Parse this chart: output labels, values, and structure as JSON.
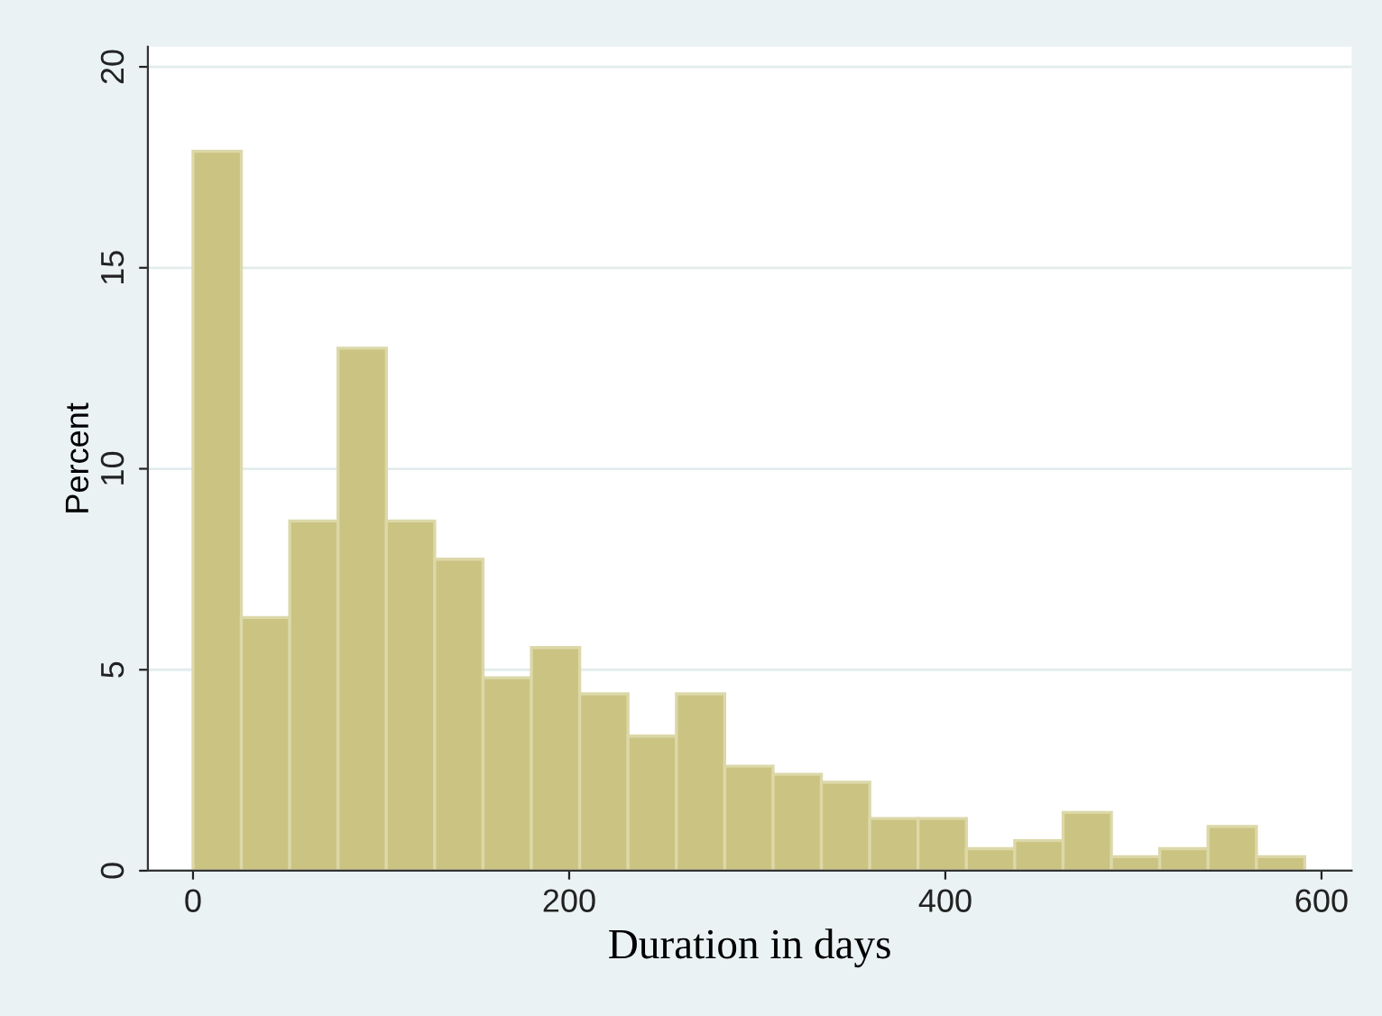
{
  "chart_data": {
    "type": "histogram",
    "xlabel": "Duration in days",
    "ylabel": "Percent",
    "bins": [
      0,
      25.7,
      51.4,
      77.1,
      102.8,
      128.5,
      154.2,
      179.9,
      205.6,
      231.3,
      257,
      282.7,
      308.4,
      334.1,
      359.8,
      385.5,
      411.2,
      436.9,
      462.6,
      488.3,
      514,
      539.7,
      565.4,
      591.1
    ],
    "values": [
      17.9,
      6.3,
      8.7,
      13.0,
      8.7,
      7.75,
      4.8,
      5.55,
      4.4,
      3.35,
      4.4,
      2.6,
      2.4,
      2.2,
      1.3,
      1.3,
      0.55,
      0.75,
      1.45,
      0.35,
      0.55,
      1.1,
      0.35
    ],
    "color": "#cbc382",
    "xlim": [
      -24,
      616
    ],
    "ylim": [
      0,
      20.5
    ],
    "xticks": [
      0,
      200,
      400,
      600
    ],
    "yticks": [
      0,
      5,
      10,
      15,
      20
    ],
    "grid": "y",
    "legend": false
  }
}
